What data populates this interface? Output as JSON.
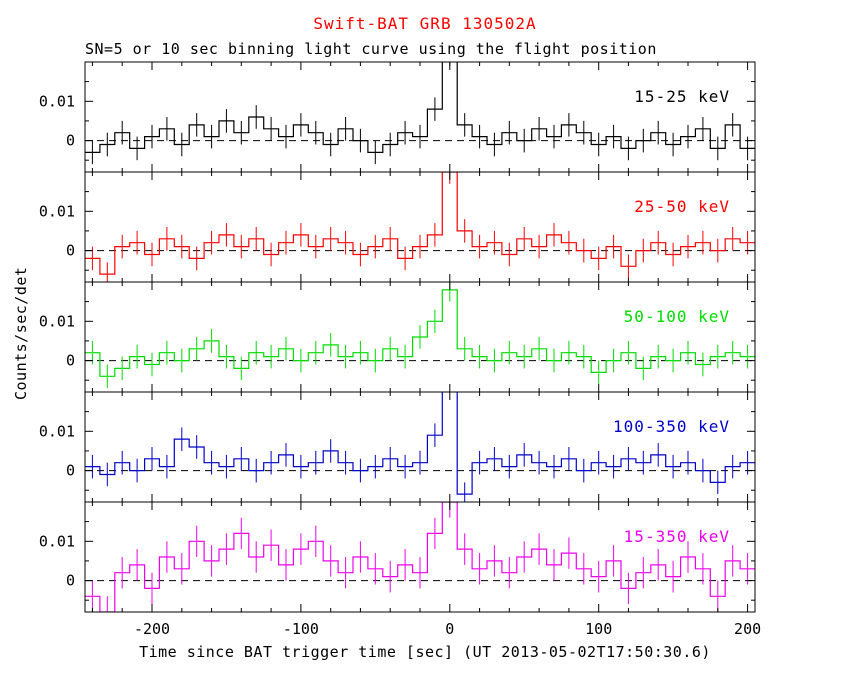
{
  "chart_data": {
    "type": "line",
    "subtype": "step-histogram-with-errorbars",
    "title": "Swift-BAT GRB 130502A",
    "title_color": "#ff0000",
    "subtitle": "SN=5 or 10 sec binning light curve using the flight position",
    "xlabel": "Time since BAT trigger time [sec] (UT 2013-05-02T17:50:30.6)",
    "ylabel": "Counts/sec/det",
    "xlim": [
      -245,
      205
    ],
    "ylim": [
      -0.008,
      0.02
    ],
    "xticks_major": [
      -200,
      -100,
      0,
      100,
      200
    ],
    "xtick_labels": [
      "-200",
      "-100",
      "0",
      "100",
      "200"
    ],
    "xticks_minor_step": 20,
    "yticks": [
      0,
      0.01
    ],
    "ytick_labels": [
      "0",
      "0.01"
    ],
    "yticks_minor": [
      -0.005,
      0.005,
      0.015
    ],
    "zero_line": {
      "style": "dashed",
      "color": "#000000",
      "y": 0
    },
    "bin_width": 10,
    "x": [
      -240,
      -230,
      -220,
      -210,
      -200,
      -190,
      -180,
      -170,
      -160,
      -150,
      -140,
      -130,
      -120,
      -110,
      -100,
      -90,
      -80,
      -70,
      -60,
      -50,
      -40,
      -30,
      -20,
      -10,
      0,
      10,
      20,
      30,
      40,
      50,
      60,
      70,
      80,
      90,
      100,
      110,
      120,
      130,
      140,
      150,
      160,
      170,
      180,
      190,
      200
    ],
    "panels": [
      {
        "band": "15-25 keV",
        "color": "#000000",
        "yerr": 0.003,
        "values": [
          -0.003,
          -0.001,
          0.002,
          -0.002,
          0.001,
          0.003,
          -0.001,
          0.004,
          0.001,
          0.005,
          0.002,
          0.006,
          0.003,
          0.001,
          0.004,
          0.002,
          -0.001,
          0.003,
          0.0,
          -0.003,
          -0.001,
          0.002,
          0.001,
          0.008,
          0.022,
          0.004,
          0.001,
          -0.001,
          0.002,
          0.0,
          0.003,
          0.001,
          0.004,
          0.002,
          -0.001,
          0.001,
          -0.002,
          0.0,
          0.002,
          -0.001,
          0.001,
          0.003,
          -0.002,
          0.004,
          -0.002
        ]
      },
      {
        "band": "25-50 keV",
        "color": "#ff0000",
        "yerr": 0.003,
        "values": [
          -0.002,
          -0.006,
          0.001,
          0.002,
          -0.001,
          0.003,
          0.001,
          -0.002,
          0.002,
          0.004,
          0.001,
          0.003,
          -0.001,
          0.002,
          0.004,
          0.001,
          0.003,
          0.002,
          -0.001,
          0.001,
          0.003,
          -0.002,
          0.001,
          0.004,
          0.02,
          0.005,
          0.001,
          0.002,
          -0.001,
          0.003,
          0.001,
          0.004,
          0.002,
          0.0,
          -0.002,
          0.001,
          -0.004,
          0.0,
          0.002,
          -0.001,
          0.001,
          0.002,
          0.0,
          0.003,
          0.002
        ]
      },
      {
        "band": "50-100 keV",
        "color": "#00dd00",
        "yerr": 0.003,
        "values": [
          0.002,
          -0.004,
          -0.002,
          0.001,
          -0.001,
          0.002,
          0.0,
          0.003,
          0.005,
          0.001,
          -0.002,
          0.002,
          0.001,
          0.003,
          0.0,
          0.002,
          0.004,
          0.001,
          0.002,
          0.0,
          0.003,
          0.001,
          0.006,
          0.01,
          0.018,
          0.003,
          0.001,
          0.0,
          0.002,
          0.001,
          0.003,
          0.0,
          0.002,
          0.001,
          -0.003,
          0.0,
          0.002,
          -0.002,
          0.001,
          0.0,
          0.002,
          -0.001,
          0.001,
          0.002,
          0.001
        ]
      },
      {
        "band": "100-350 keV",
        "color": "#0000cc",
        "yerr": 0.003,
        "values": [
          0.001,
          -0.001,
          0.002,
          0.0,
          0.003,
          0.001,
          0.008,
          0.006,
          0.002,
          0.001,
          0.003,
          0.0,
          0.002,
          0.004,
          0.001,
          0.002,
          0.005,
          0.002,
          0.0,
          0.001,
          0.003,
          0.001,
          0.002,
          0.009,
          0.025,
          -0.006,
          0.002,
          0.003,
          0.001,
          0.004,
          0.002,
          0.001,
          0.003,
          0.0,
          0.002,
          0.001,
          0.003,
          0.002,
          0.004,
          0.001,
          0.002,
          0.0,
          -0.003,
          0.001,
          0.002
        ]
      },
      {
        "band": "15-350 keV",
        "color": "#ee00ee",
        "yerr": 0.004,
        "values": [
          -0.004,
          -0.008,
          0.002,
          0.004,
          -0.002,
          0.006,
          0.003,
          0.01,
          0.005,
          0.008,
          0.012,
          0.006,
          0.009,
          0.004,
          0.008,
          0.01,
          0.005,
          0.002,
          0.006,
          0.003,
          0.001,
          0.004,
          0.002,
          0.012,
          0.02,
          0.008,
          0.003,
          0.005,
          0.002,
          0.006,
          0.008,
          0.004,
          0.007,
          0.003,
          0.001,
          0.005,
          -0.002,
          0.002,
          0.004,
          0.001,
          0.006,
          0.003,
          -0.004,
          0.005,
          0.003
        ]
      }
    ]
  }
}
